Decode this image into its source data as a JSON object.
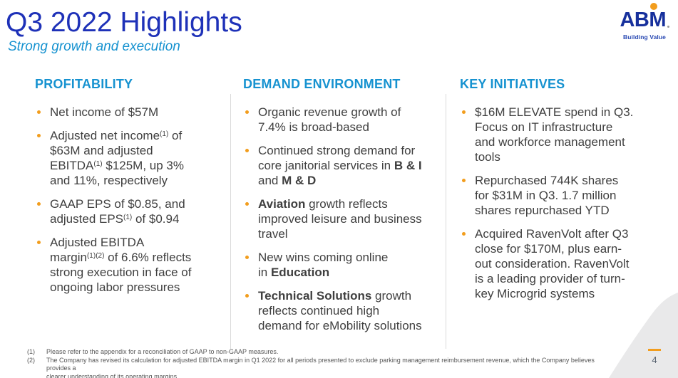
{
  "slide": {
    "title": "Q3 2022 Highlights",
    "subtitle": "Strong growth and execution",
    "page_number": "4"
  },
  "logo": {
    "text": "ABM",
    "tagline": "Building Value"
  },
  "colors": {
    "title_blue": "#1e31b8",
    "accent_blue": "#1692d0",
    "bullet_orange": "#f29d1d",
    "body_text": "#3f3f3f",
    "logo_blue": "#17309c",
    "tagline_blue": "#2a4ab3",
    "divider_gray": "#dadada",
    "footnote_gray": "#555555",
    "swoosh_gray": "#e9e9ea",
    "pagenum_gray": "#5a6472"
  },
  "columns": [
    {
      "header": "PROFITABILITY",
      "bullets": [
        {
          "segments": [
            {
              "text": "Net income of $57M"
            }
          ]
        },
        {
          "segments": [
            {
              "text": "Adjusted net income"
            },
            {
              "text": "(1)",
              "sup": true
            },
            {
              "text": " of\n$63M and adjusted\nEBITDA"
            },
            {
              "text": "(1)",
              "sup": true
            },
            {
              "text": " $125M, up 3%\nand 11%, respectively"
            }
          ]
        },
        {
          "segments": [
            {
              "text": "GAAP EPS of $0.85, and\nadjusted EPS"
            },
            {
              "text": "(1)",
              "sup": true
            },
            {
              "text": " of $0.94"
            }
          ]
        },
        {
          "segments": [
            {
              "text": "Adjusted EBITDA\nmargin"
            },
            {
              "text": "(1)(2)",
              "sup": true
            },
            {
              "text": " of 6.6% reflects\nstrong execution in face of\nongoing labor pressures"
            }
          ]
        }
      ]
    },
    {
      "header": "DEMAND ENVIRONMENT",
      "bullets": [
        {
          "segments": [
            {
              "text": "Organic revenue growth of\n7.4% is broad-based"
            }
          ]
        },
        {
          "segments": [
            {
              "text": "Continued strong demand for\ncore janitorial services in "
            },
            {
              "text": "B & I",
              "bold": true
            },
            {
              "text": "\nand "
            },
            {
              "text": "M & D",
              "bold": true
            }
          ]
        },
        {
          "segments": [
            {
              "text": "Aviation",
              "bold": true
            },
            {
              "text": " growth reflects\nimproved leisure and business\ntravel"
            }
          ]
        },
        {
          "segments": [
            {
              "text": "New wins coming online\nin "
            },
            {
              "text": "Education",
              "bold": true
            }
          ]
        },
        {
          "segments": [
            {
              "text": "Technical Solutions",
              "bold": true
            },
            {
              "text": " growth\nreflects continued high\ndemand for eMobility solutions"
            }
          ]
        }
      ]
    },
    {
      "header": "KEY INITIATIVES",
      "bullets": [
        {
          "segments": [
            {
              "text": "$16M ELEVATE spend in Q3.\nFocus on IT infrastructure\nand workforce management\ntools"
            }
          ]
        },
        {
          "segments": [
            {
              "text": "Repurchased 744K shares\nfor $31M in Q3. 1.7 million\nshares repurchased YTD"
            }
          ]
        },
        {
          "segments": [
            {
              "text": "Acquired RavenVolt after Q3\nclose for $170M, plus earn-\nout consideration. RavenVolt\nis a leading provider of turn-\nkey Microgrid systems"
            }
          ]
        }
      ]
    }
  ],
  "footnotes": [
    {
      "num": "(1)",
      "text": "Please refer to the appendix for a reconciliation of GAAP to non-GAAP measures."
    },
    {
      "num": "(2)",
      "text": "The Company has revised its calculation for adjusted EBITDA margin in Q1 2022 for all periods presented to exclude parking management reimbursement revenue, which the Company believes provides a\nclearer understanding of its operating margins."
    }
  ]
}
